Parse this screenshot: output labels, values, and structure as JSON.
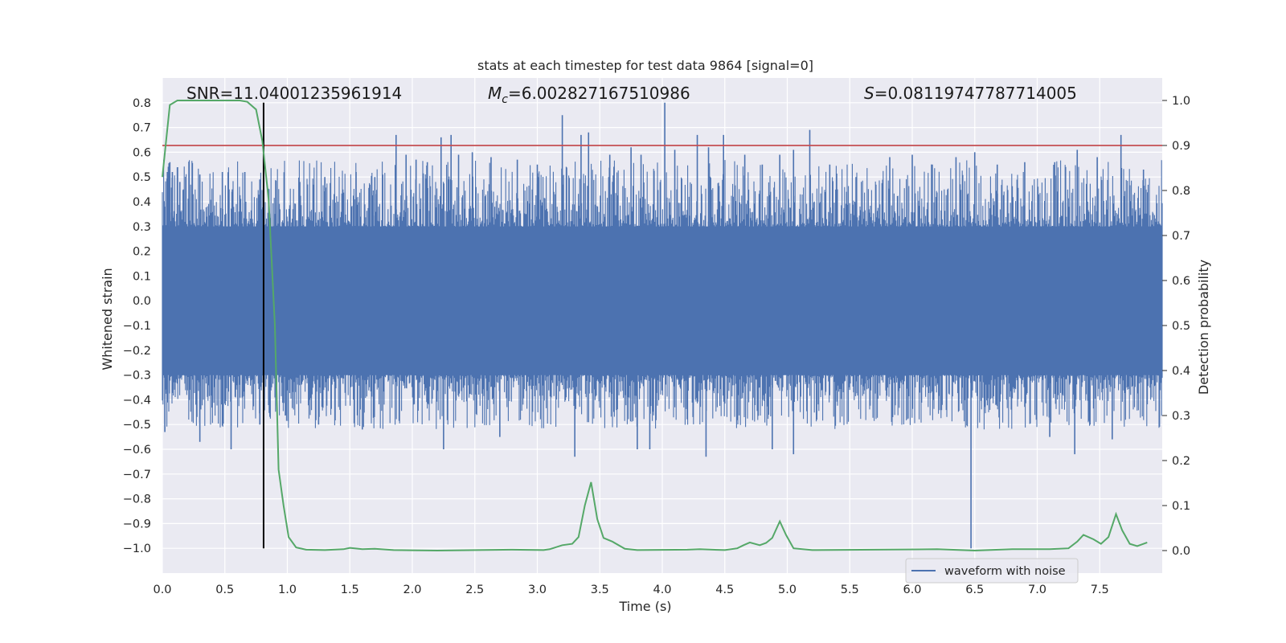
{
  "chart_data": {
    "type": "line",
    "title": "stats at each timestep for test data 9864 [signal=0]",
    "xlabel": "Time (s)",
    "ylabel": "Whitened strain",
    "ylabel_right": "Detection probability",
    "xlim": [
      0.0,
      8.0
    ],
    "ylim": [
      -1.1,
      0.9
    ],
    "ylim_right": [
      -0.05,
      1.05
    ],
    "x_ticks": [
      "0.0",
      "0.5",
      "1.0",
      "1.5",
      "2.0",
      "2.5",
      "3.0",
      "3.5",
      "4.0",
      "4.5",
      "5.0",
      "5.5",
      "6.0",
      "6.5",
      "7.0",
      "7.5"
    ],
    "y_ticks": [
      "0.8",
      "0.7",
      "0.6",
      "0.5",
      "0.4",
      "0.3",
      "0.2",
      "0.1",
      "0.0",
      "−0.1",
      "−0.2",
      "−0.3",
      "−0.4",
      "−0.5",
      "−0.6",
      "−0.7",
      "−0.8",
      "−0.9",
      "−1.0"
    ],
    "y_ticks_right": [
      "1.0",
      "0.9",
      "0.8",
      "0.7",
      "0.6",
      "0.5",
      "0.4",
      "0.3",
      "0.2",
      "0.1",
      "0.0"
    ],
    "annotations": {
      "snr_label": "SNR=11.04001235961914",
      "mc_symbol": "M",
      "mc_subscript": "c",
      "mc_value": "=6.002827167510986",
      "s_symbol": "S",
      "s_value": "=0.08119747787714005"
    },
    "legend": {
      "label": "waveform with noise",
      "location": "lower-right"
    },
    "threshold_probability": 0.9,
    "vertical_marker_time": 0.81,
    "grid": true,
    "waveform": {
      "name": "waveform with noise",
      "color": "#4c72b0",
      "core_band": [
        -0.3,
        0.3
      ],
      "spikes": [
        {
          "t": 0.02,
          "v": 0.38
        },
        {
          "t": 0.04,
          "v": 0.52
        },
        {
          "t": 0.06,
          "v": 0.56
        },
        {
          "t": 0.08,
          "v": 0.52
        },
        {
          "t": 0.14,
          "v": 0.48
        },
        {
          "t": 0.17,
          "v": 0.45
        },
        {
          "t": 0.3,
          "v": 0.51
        },
        {
          "t": 0.48,
          "v": 0.52
        },
        {
          "t": 0.56,
          "v": 0.45
        },
        {
          "t": 0.66,
          "v": 0.52
        },
        {
          "t": 0.78,
          "v": 0.49
        },
        {
          "t": 1.1,
          "v": 0.48
        },
        {
          "t": 1.3,
          "v": 0.5
        },
        {
          "t": 1.55,
          "v": 0.52
        },
        {
          "t": 1.7,
          "v": 0.5
        },
        {
          "t": 1.87,
          "v": 0.67
        },
        {
          "t": 1.95,
          "v": 0.59
        },
        {
          "t": 2.03,
          "v": 0.57
        },
        {
          "t": 2.12,
          "v": 0.56
        },
        {
          "t": 2.23,
          "v": 0.66
        },
        {
          "t": 2.31,
          "v": 0.67
        },
        {
          "t": 2.37,
          "v": 0.59
        },
        {
          "t": 2.48,
          "v": 0.6
        },
        {
          "t": 2.63,
          "v": 0.58
        },
        {
          "t": 2.84,
          "v": 0.57
        },
        {
          "t": 3.0,
          "v": 0.55
        },
        {
          "t": 3.2,
          "v": 0.75
        },
        {
          "t": 3.35,
          "v": 0.67
        },
        {
          "t": 3.41,
          "v": 0.68
        },
        {
          "t": 3.58,
          "v": 0.59
        },
        {
          "t": 3.75,
          "v": 0.62
        },
        {
          "t": 3.83,
          "v": 0.59
        },
        {
          "t": 4.02,
          "v": 0.8
        },
        {
          "t": 4.1,
          "v": 0.61
        },
        {
          "t": 4.28,
          "v": 0.67
        },
        {
          "t": 4.37,
          "v": 0.62
        },
        {
          "t": 4.49,
          "v": 0.67
        },
        {
          "t": 4.66,
          "v": 0.59
        },
        {
          "t": 4.8,
          "v": 0.55
        },
        {
          "t": 4.94,
          "v": 0.59
        },
        {
          "t": 5.05,
          "v": 0.61
        },
        {
          "t": 5.18,
          "v": 0.69
        },
        {
          "t": 5.34,
          "v": 0.55
        },
        {
          "t": 5.55,
          "v": 0.5
        },
        {
          "t": 5.82,
          "v": 0.58
        },
        {
          "t": 6.0,
          "v": 0.59
        },
        {
          "t": 6.16,
          "v": 0.55
        },
        {
          "t": 6.35,
          "v": 0.58
        },
        {
          "t": 6.5,
          "v": 0.6
        },
        {
          "t": 6.68,
          "v": 0.55
        },
        {
          "t": 6.9,
          "v": 0.56
        },
        {
          "t": 7.14,
          "v": 0.56
        },
        {
          "t": 7.32,
          "v": 0.61
        },
        {
          "t": 7.48,
          "v": 0.58
        },
        {
          "t": 7.67,
          "v": 0.67
        },
        {
          "t": 7.85,
          "v": 0.53
        },
        {
          "t": 0.02,
          "v": -0.53
        },
        {
          "t": 0.3,
          "v": -0.57
        },
        {
          "t": 0.55,
          "v": -0.6
        },
        {
          "t": 0.78,
          "v": -0.5
        },
        {
          "t": 1.25,
          "v": -0.5
        },
        {
          "t": 1.6,
          "v": -0.52
        },
        {
          "t": 2.25,
          "v": -0.6
        },
        {
          "t": 2.7,
          "v": -0.55
        },
        {
          "t": 3.3,
          "v": -0.63
        },
        {
          "t": 3.8,
          "v": -0.6
        },
        {
          "t": 3.9,
          "v": -0.6
        },
        {
          "t": 4.35,
          "v": -0.63
        },
        {
          "t": 4.88,
          "v": -0.6
        },
        {
          "t": 5.05,
          "v": -0.62
        },
        {
          "t": 6.47,
          "v": -1.0
        },
        {
          "t": 7.1,
          "v": -0.55
        },
        {
          "t": 7.3,
          "v": -0.62
        },
        {
          "t": 7.6,
          "v": -0.56
        }
      ]
    },
    "probability": {
      "name": "detection probability",
      "color": "#55a868",
      "points": [
        [
          0.0,
          0.83
        ],
        [
          0.06,
          0.99
        ],
        [
          0.12,
          1.0
        ],
        [
          0.2,
          1.0
        ],
        [
          0.4,
          1.0
        ],
        [
          0.62,
          1.0
        ],
        [
          0.68,
          0.997
        ],
        [
          0.75,
          0.98
        ],
        [
          0.8,
          0.91
        ],
        [
          0.85,
          0.78
        ],
        [
          0.9,
          0.5
        ],
        [
          0.93,
          0.18
        ],
        [
          0.97,
          0.1
        ],
        [
          1.01,
          0.03
        ],
        [
          1.07,
          0.007
        ],
        [
          1.15,
          0.002
        ],
        [
          1.3,
          0.001
        ],
        [
          1.45,
          0.003
        ],
        [
          1.5,
          0.006
        ],
        [
          1.6,
          0.003
        ],
        [
          1.7,
          0.004
        ],
        [
          1.85,
          0.001
        ],
        [
          2.2,
          0.0
        ],
        [
          2.8,
          0.002
        ],
        [
          3.05,
          0.001
        ],
        [
          3.1,
          0.003
        ],
        [
          3.2,
          0.012
        ],
        [
          3.28,
          0.015
        ],
        [
          3.33,
          0.03
        ],
        [
          3.38,
          0.1
        ],
        [
          3.43,
          0.152
        ],
        [
          3.48,
          0.07
        ],
        [
          3.53,
          0.028
        ],
        [
          3.6,
          0.02
        ],
        [
          3.7,
          0.004
        ],
        [
          3.8,
          0.001
        ],
        [
          4.2,
          0.002
        ],
        [
          4.3,
          0.003
        ],
        [
          4.5,
          0.001
        ],
        [
          4.6,
          0.005
        ],
        [
          4.65,
          0.012
        ],
        [
          4.7,
          0.018
        ],
        [
          4.78,
          0.012
        ],
        [
          4.83,
          0.017
        ],
        [
          4.88,
          0.028
        ],
        [
          4.94,
          0.065
        ],
        [
          4.99,
          0.035
        ],
        [
          5.05,
          0.005
        ],
        [
          5.2,
          0.001
        ],
        [
          6.2,
          0.003
        ],
        [
          6.5,
          0.0
        ],
        [
          6.8,
          0.003
        ],
        [
          7.1,
          0.003
        ],
        [
          7.25,
          0.005
        ],
        [
          7.32,
          0.02
        ],
        [
          7.37,
          0.035
        ],
        [
          7.45,
          0.025
        ],
        [
          7.51,
          0.015
        ],
        [
          7.57,
          0.03
        ],
        [
          7.63,
          0.081
        ],
        [
          7.68,
          0.045
        ],
        [
          7.74,
          0.015
        ],
        [
          7.8,
          0.01
        ],
        [
          7.88,
          0.018
        ]
      ]
    }
  }
}
